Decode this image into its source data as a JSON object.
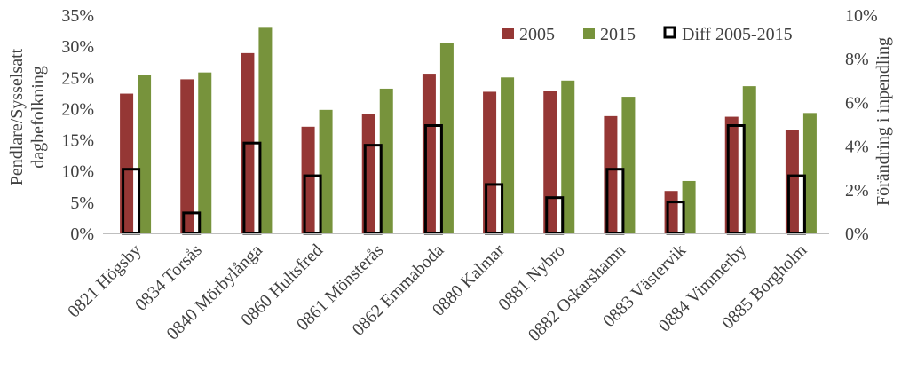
{
  "colors": {
    "series_2005": "#953735",
    "series_2015": "#77933C",
    "series_diff_stroke": "#000000",
    "axis": "#BFBFBF",
    "text": "#404040"
  },
  "chart_data": {
    "type": "bar",
    "categories": [
      "0821 Högsby",
      "0834 Torsås",
      "0840 Mörbylånga",
      "0860 Hultsfred",
      "0861 Mönsterås",
      "0862 Emmaboda",
      "0880 Kalmar",
      "0881 Nybro",
      "0882 Oskarshamn",
      "0883 Västervik",
      "0884 Vimmerby",
      "0885 Borgholm"
    ],
    "series": [
      {
        "name": "2005",
        "axis": "left",
        "values": [
          22.4,
          24.7,
          28.9,
          17.1,
          19.2,
          25.6,
          22.7,
          22.8,
          18.8,
          6.8,
          18.7,
          16.6
        ]
      },
      {
        "name": "2015",
        "axis": "left",
        "values": [
          25.4,
          25.8,
          33.1,
          19.8,
          23.2,
          30.5,
          25.0,
          24.5,
          21.9,
          8.4,
          23.6,
          19.3
        ]
      },
      {
        "name": "Diff 2005-2015",
        "axis": "right",
        "values": [
          3.0,
          1.0,
          4.2,
          2.7,
          4.1,
          5.0,
          2.3,
          1.7,
          3.0,
          1.5,
          5.0,
          2.7
        ]
      }
    ],
    "ylabel_lines": [
      "Pendlare/Sysselsatt",
      "dagbefolkning"
    ],
    "y2label": "Förändring i inpendling",
    "ylim": [
      0,
      35
    ],
    "y2lim": [
      0,
      10
    ],
    "yticks": [
      "0%",
      "5%",
      "10%",
      "15%",
      "20%",
      "25%",
      "30%",
      "35%"
    ],
    "y2ticks": [
      "0%",
      "2%",
      "4%",
      "6%",
      "8%",
      "10%"
    ],
    "legend_position": "top-right",
    "grid": false
  }
}
